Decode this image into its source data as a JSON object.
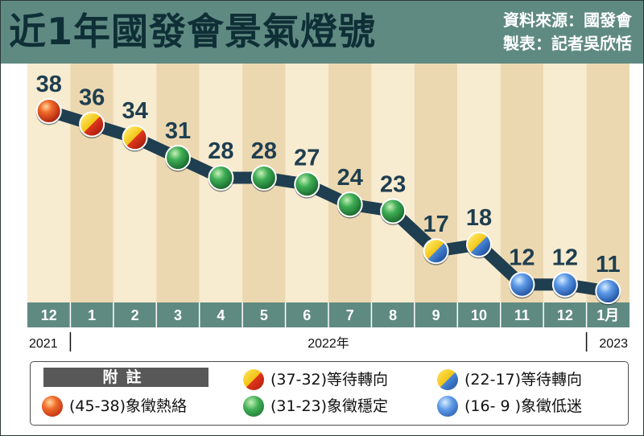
{
  "header": {
    "title": "近1年國發會景氣燈號",
    "source": "資料來源：國發會",
    "maker": "製表：記者吳欣恬"
  },
  "chart_data": {
    "type": "line",
    "categories": [
      "12",
      "1",
      "2",
      "3",
      "4",
      "5",
      "6",
      "7",
      "8",
      "9",
      "10",
      "11",
      "12",
      "1月"
    ],
    "values": [
      38,
      36,
      34,
      31,
      28,
      28,
      27,
      24,
      23,
      17,
      18,
      12,
      12,
      11
    ],
    "light_colors": [
      "red",
      "yellow-red",
      "yellow-red",
      "green",
      "green",
      "green",
      "green",
      "green",
      "green",
      "yellow-blue",
      "yellow-blue",
      "blue",
      "blue",
      "blue"
    ],
    "ylim": [
      8,
      41
    ],
    "years": [
      {
        "label": "2021",
        "from": 0,
        "to": 0
      },
      {
        "label": "2022年",
        "from": 1,
        "to": 12
      },
      {
        "label": "2023",
        "from": 13,
        "to": 13
      }
    ],
    "grid": false
  },
  "legend": {
    "heading": "附註",
    "items": [
      {
        "text": "(45-38)象徵熱絡",
        "light": "red"
      },
      {
        "text": "(37-32)等待轉向",
        "light": "yellow-red"
      },
      {
        "text": "(31-23)象徵穩定",
        "light": "green"
      },
      {
        "text": "(22-17)等待轉向",
        "light": "yellow-blue"
      },
      {
        "text": "(16- 9 )象徵低迷",
        "light": "blue"
      }
    ]
  },
  "colors": {
    "header_bg": "#5f8a82",
    "title_text": "#0f2f36",
    "stripe_light": "#f7ebd0",
    "stripe_dark": "#ecd8b0",
    "axis_band": "#5f8a82",
    "connector": "#1f3e50",
    "value_label": "#1f3e50",
    "red": "#d83a1c",
    "yellow": "#f2c414",
    "green": "#2f9a45",
    "blue": "#4b88d8"
  }
}
